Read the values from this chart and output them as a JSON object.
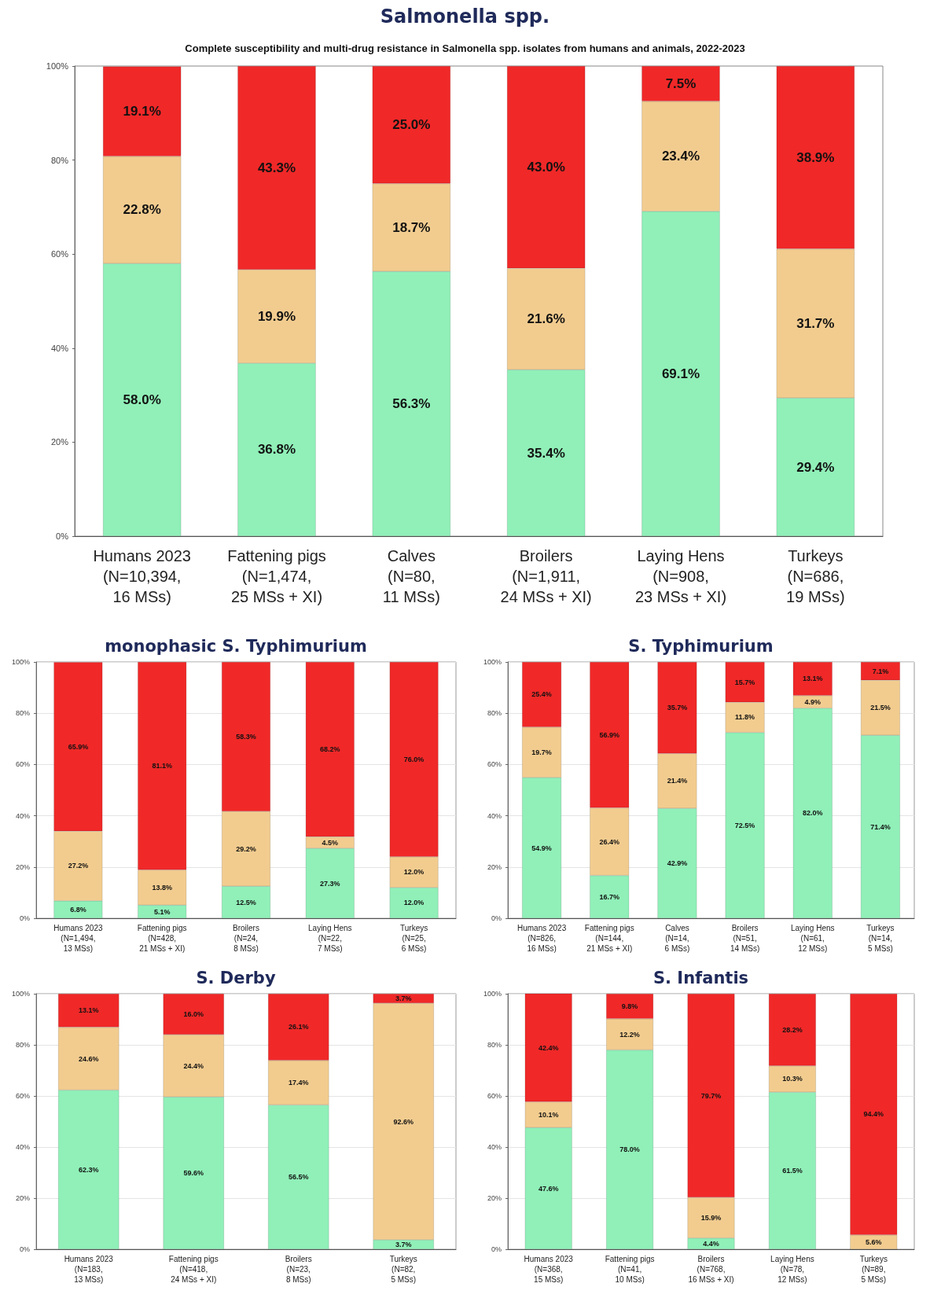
{
  "chart_data": [
    {
      "type": "bar",
      "stacked": true,
      "title": "Salmonella spp.",
      "subtitle": "Complete susceptibility and multi-drug resistance in Salmonella spp. isolates from humans and animals, 2022-2023",
      "categories": [
        "Humans 2023\n(N=10,394,\n16 MSs)",
        "Fattening pigs\n(N=1,474,\n25 MSs + XI)",
        "Calves\n(N=80,\n11 MSs)",
        "Broilers\n(N=1,911,\n24 MSs + XI)",
        "Laying Hens\n(N=908,\n23 MSs + XI)",
        "Turkeys\n(N=686,\n19 MSs)"
      ],
      "series": [
        {
          "color": "#90f0b8",
          "values": [
            58.0,
            36.8,
            56.3,
            35.4,
            69.1,
            29.4
          ],
          "value_labels": [
            "58.0%",
            "36.8%",
            "56.3%",
            "35.4%",
            "69.1%",
            "29.4%"
          ]
        },
        {
          "color": "#f2cc8f",
          "values": [
            22.8,
            19.9,
            18.7,
            21.6,
            23.4,
            31.7
          ],
          "value_labels": [
            "22.8%",
            "19.9%",
            "18.7%",
            "21.6%",
            "23.4%",
            "31.7%"
          ]
        },
        {
          "color": "#f02828",
          "values": [
            19.1,
            43.3,
            25.0,
            43.0,
            7.5,
            38.9
          ],
          "value_labels": [
            "19.1%",
            "43.3%",
            "25.0%",
            "43.0%",
            "7.5%",
            "38.9%"
          ]
        }
      ],
      "ylim": [
        0,
        100
      ],
      "yticks": [
        {
          "value": 0,
          "label": "0%"
        },
        {
          "value": 20,
          "label": "20%"
        },
        {
          "value": 40,
          "label": "40%"
        },
        {
          "value": 60,
          "label": "60%"
        },
        {
          "value": 80,
          "label": "80%"
        },
        {
          "value": 100,
          "label": "100%"
        }
      ],
      "grid": false
    },
    {
      "type": "bar",
      "stacked": true,
      "title": "monophasic S. Typhimurium",
      "categories": [
        "Humans 2023\n(N=1,494,\n13 MSs)",
        "Fattening pigs\n(N=428,\n21 MSs + XI)",
        "Broilers\n(N=24,\n8 MSs)",
        "Laying Hens\n(N=22,\n7 MSs)",
        "Turkeys\n(N=25,\n6 MSs)"
      ],
      "series": [
        {
          "color": "#90f0b8",
          "values": [
            6.8,
            5.1,
            12.5,
            27.3,
            12.0
          ],
          "value_labels": [
            "6.8%",
            "5.1%",
            "12.5%",
            "27.3%",
            "12.0%"
          ]
        },
        {
          "color": "#f2cc8f",
          "values": [
            27.2,
            13.8,
            29.2,
            4.5,
            12.0
          ],
          "value_labels": [
            "27.2%",
            "13.8%",
            "29.2%",
            "4.5%",
            "12.0%"
          ]
        },
        {
          "color": "#f02828",
          "values": [
            65.9,
            81.1,
            58.3,
            68.2,
            76.0
          ],
          "value_labels": [
            "65.9%",
            "81.1%",
            "58.3%",
            "68.2%",
            "76.0%"
          ]
        }
      ],
      "ylim": [
        0,
        100
      ],
      "yticks": [
        {
          "value": 0,
          "label": "0%"
        },
        {
          "value": 20,
          "label": "20%"
        },
        {
          "value": 40,
          "label": "40%"
        },
        {
          "value": 60,
          "label": "60%"
        },
        {
          "value": 80,
          "label": "80%"
        },
        {
          "value": 100,
          "label": "100%"
        }
      ],
      "grid": "y"
    },
    {
      "type": "bar",
      "stacked": true,
      "title": "S. Typhimurium",
      "categories": [
        "Humans 2023\n(N=826,\n16 MSs)",
        "Fattening pigs\n(N=144,\n21 MSs + XI)",
        "Calves\n(N=14,\n6 MSs)",
        "Broilers\n(N=51,\n14 MSs)",
        "Laying Hens\n(N=61,\n12 MSs)",
        "Turkeys\n(N=14,\n5 MSs)"
      ],
      "series": [
        {
          "color": "#90f0b8",
          "values": [
            54.9,
            16.7,
            42.9,
            72.5,
            82.0,
            71.4
          ],
          "value_labels": [
            "54.9%",
            "16.7%",
            "42.9%",
            "72.5%",
            "82.0%",
            "71.4%"
          ]
        },
        {
          "color": "#f2cc8f",
          "values": [
            19.7,
            26.4,
            21.4,
            11.8,
            4.9,
            21.5
          ],
          "value_labels": [
            "19.7%",
            "26.4%",
            "21.4%",
            "11.8%",
            "4.9%",
            "21.5%"
          ]
        },
        {
          "color": "#f02828",
          "values": [
            25.4,
            56.9,
            35.7,
            15.7,
            13.1,
            7.1
          ],
          "value_labels": [
            "25.4%",
            "56.9%",
            "35.7%",
            "15.7%",
            "13.1%",
            "7.1%"
          ]
        }
      ],
      "ylim": [
        0,
        100
      ],
      "yticks": [
        {
          "value": 0,
          "label": "0%"
        },
        {
          "value": 20,
          "label": "20%"
        },
        {
          "value": 40,
          "label": "40%"
        },
        {
          "value": 60,
          "label": "60%"
        },
        {
          "value": 80,
          "label": "80%"
        },
        {
          "value": 100,
          "label": "100%"
        }
      ],
      "grid": "y"
    },
    {
      "type": "bar",
      "stacked": true,
      "title": "S. Derby",
      "categories": [
        "Humans 2023\n(N=183,\n13 MSs)",
        "Fattening pigs\n(N=418,\n24 MSs + XI)",
        "Broilers\n(N=23,\n8 MSs)",
        "Turkeys\n(N=82,\n5 MSs)"
      ],
      "series": [
        {
          "color": "#90f0b8",
          "values": [
            62.3,
            59.6,
            56.5,
            3.7
          ],
          "value_labels": [
            "62.3%",
            "59.6%",
            "56.5%",
            "3.7%"
          ]
        },
        {
          "color": "#f2cc8f",
          "values": [
            24.6,
            24.4,
            17.4,
            92.6
          ],
          "value_labels": [
            "24.6%",
            "24.4%",
            "17.4%",
            "92.6%"
          ]
        },
        {
          "color": "#f02828",
          "values": [
            13.1,
            16.0,
            26.1,
            3.7
          ],
          "value_labels": [
            "13.1%",
            "16.0%",
            "26.1%",
            "3.7%"
          ]
        }
      ],
      "ylim": [
        0,
        100
      ],
      "yticks": [
        {
          "value": 0,
          "label": "0%"
        },
        {
          "value": 20,
          "label": "20%"
        },
        {
          "value": 40,
          "label": "40%"
        },
        {
          "value": 60,
          "label": "60%"
        },
        {
          "value": 80,
          "label": "80%"
        },
        {
          "value": 100,
          "label": "100%"
        }
      ],
      "grid": "y"
    },
    {
      "type": "bar",
      "stacked": true,
      "title": "S. Infantis",
      "categories": [
        "Humans 2023\n(N=368,\n15 MSs)",
        "Fattening pigs\n(N=41,\n10 MSs)",
        "Broilers\n(N=768,\n16 MSs + XI)",
        "Laying Hens\n(N=78,\n12 MSs)",
        "Turkeys\n(N=89,\n5 MSs)"
      ],
      "series": [
        {
          "color": "#90f0b8",
          "values": [
            47.6,
            78.0,
            4.4,
            61.5,
            0
          ],
          "value_labels": [
            "47.6%",
            "78.0%",
            "4.4%",
            "61.5%",
            null
          ]
        },
        {
          "color": "#f2cc8f",
          "values": [
            10.1,
            12.2,
            15.9,
            10.3,
            5.6
          ],
          "value_labels": [
            "10.1%",
            "12.2%",
            "15.9%",
            "10.3%",
            "5.6%"
          ]
        },
        {
          "color": "#f02828",
          "values": [
            42.4,
            9.8,
            79.7,
            28.2,
            94.4
          ],
          "value_labels": [
            "42.4%",
            "9.8%",
            "79.7%",
            "28.2%",
            "94.4%"
          ]
        }
      ],
      "ylim": [
        0,
        100
      ],
      "yticks": [
        {
          "value": 0,
          "label": "0%"
        },
        {
          "value": 20,
          "label": "20%"
        },
        {
          "value": 40,
          "label": "40%"
        },
        {
          "value": 60,
          "label": "60%"
        },
        {
          "value": 80,
          "label": "80%"
        },
        {
          "value": 100,
          "label": "100%"
        }
      ],
      "grid": "y"
    }
  ]
}
